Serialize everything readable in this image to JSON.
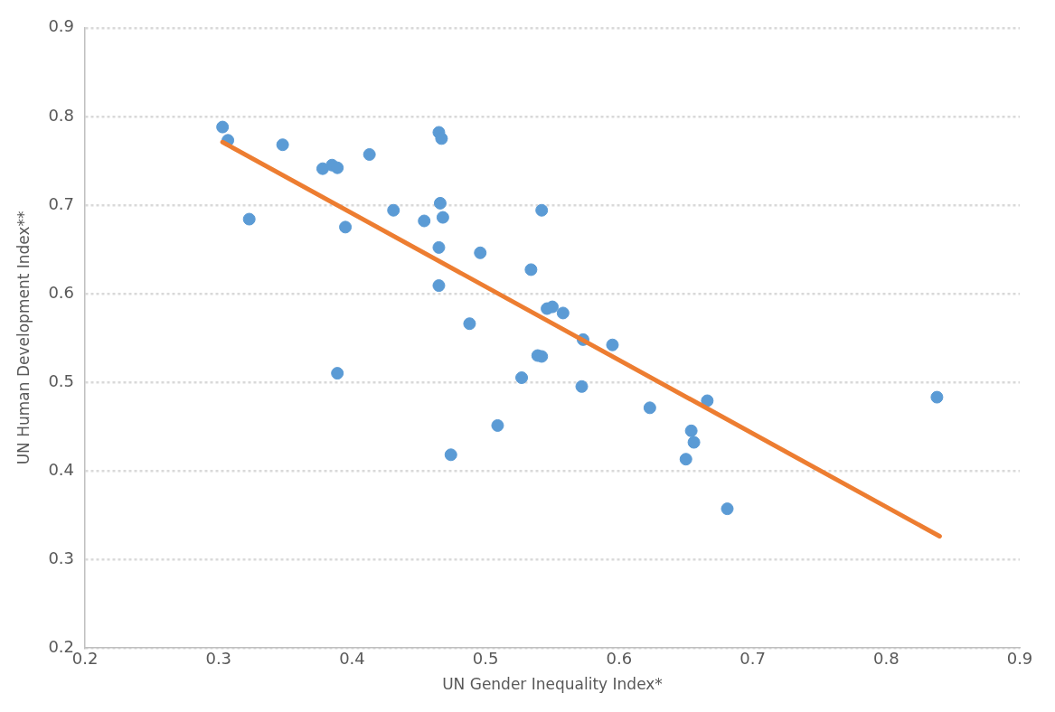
{
  "chart_data": {
    "type": "scatter",
    "xlabel": "UN Gender Inequality Index*",
    "ylabel": "UN Human Development Index**",
    "xlim": [
      0.2,
      0.9
    ],
    "xticks": [
      0.2,
      0.3,
      0.4,
      0.5,
      0.6,
      0.7,
      0.8,
      0.9
    ],
    "ylim": [
      0.2,
      0.9
    ],
    "yticks": [
      0.2,
      0.3,
      0.4,
      0.5,
      0.6,
      0.7,
      0.8,
      0.9
    ],
    "grid": "y",
    "legend": false,
    "series": [
      {
        "color": "#5b9bd5",
        "marker": "circle",
        "x": [
          0.303,
          0.307,
          0.323,
          0.348,
          0.378,
          0.385,
          0.389,
          0.395,
          0.389,
          0.413,
          0.431,
          0.454,
          0.465,
          0.467,
          0.466,
          0.468,
          0.465,
          0.465,
          0.474,
          0.488,
          0.496,
          0.509,
          0.527,
          0.534,
          0.542,
          0.539,
          0.542,
          0.546,
          0.55,
          0.558,
          0.573,
          0.572,
          0.595,
          0.623,
          0.654,
          0.656,
          0.65,
          0.666,
          0.681,
          0.838
        ],
        "values": [
          0.788,
          0.773,
          0.684,
          0.768,
          0.741,
          0.745,
          0.742,
          0.675,
          0.51,
          0.757,
          0.694,
          0.682,
          0.782,
          0.775,
          0.702,
          0.686,
          0.652,
          0.609,
          0.418,
          0.566,
          0.646,
          0.451,
          0.505,
          0.627,
          0.694,
          0.53,
          0.529,
          0.583,
          0.585,
          0.578,
          0.548,
          0.495,
          0.542,
          0.471,
          0.445,
          0.432,
          0.413,
          0.479,
          0.357,
          0.483
        ]
      },
      {
        "type": "line",
        "color": "#ed7d31",
        "x": [
          0.303,
          0.84
        ],
        "values": [
          0.771,
          0.326
        ]
      }
    ]
  }
}
